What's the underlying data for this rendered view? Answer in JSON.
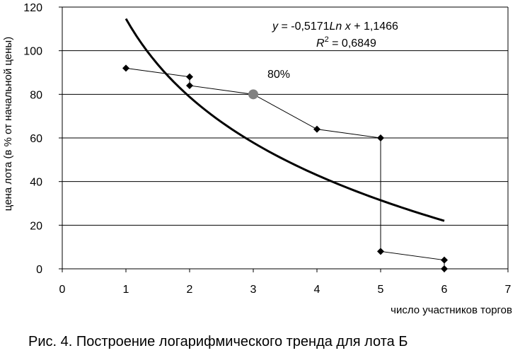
{
  "chart_data": {
    "type": "scatter",
    "title": "",
    "xlabel": "число участников торгов",
    "ylabel": "цена лота (в % от начальной цены)",
    "xlim": [
      0,
      7
    ],
    "ylim": [
      0,
      120
    ],
    "x_ticks": [
      0,
      1,
      2,
      3,
      4,
      5,
      6,
      7
    ],
    "y_ticks": [
      0,
      20,
      40,
      60,
      80,
      100,
      120
    ],
    "grid": "horizontal",
    "series": [
      {
        "type": "line",
        "color": "#000000",
        "marker": "diamond",
        "points": [
          {
            "x": 1,
            "y": 92
          },
          {
            "x": 2,
            "y": 88
          },
          {
            "x": 2,
            "y": 84
          },
          {
            "x": 3,
            "y": 80
          },
          {
            "x": 4,
            "y": 64
          },
          {
            "x": 5,
            "y": 60
          },
          {
            "x": 5,
            "y": 8
          },
          {
            "x": 6,
            "y": 4
          },
          {
            "x": 6,
            "y": 0
          }
        ]
      },
      {
        "type": "trendline",
        "kind": "logarithmic",
        "color": "#000000",
        "x_range": [
          1,
          6
        ],
        "coef_a": -0.5171,
        "coef_b": 1.1466,
        "start_y": 114.66
      }
    ],
    "highlight": {
      "x": 3,
      "y": 80,
      "label": "80%",
      "color": "#808080"
    },
    "equation": {
      "line1": "y = -0,5171Ln x + 1,1466",
      "r2_label": "R",
      "r2_sup": "2",
      "r2_value": " = 0,6849"
    }
  },
  "caption": "Рис. 4. Построение логарифмического тренда для лота Б"
}
